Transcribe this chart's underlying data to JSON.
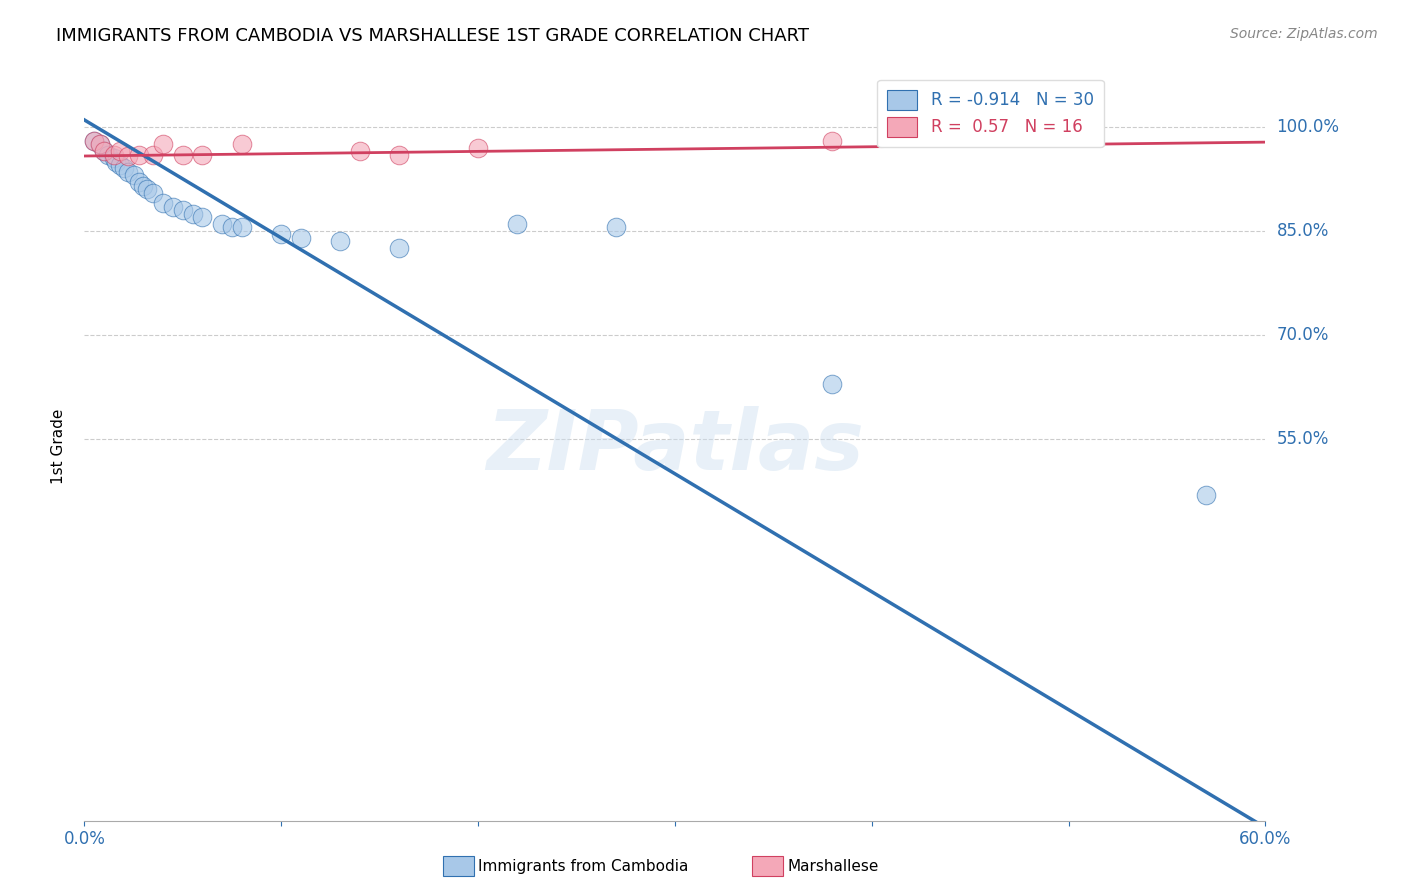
{
  "title": "IMMIGRANTS FROM CAMBODIA VS MARSHALLESE 1ST GRADE CORRELATION CHART",
  "source": "Source: ZipAtlas.com",
  "xlabel_blue": "Immigrants from Cambodia",
  "xlabel_pink": "Marshallese",
  "ylabel": "1st Grade",
  "watermark": "ZIPatlas",
  "blue_R": -0.914,
  "blue_N": 30,
  "pink_R": 0.57,
  "pink_N": 16,
  "blue_color": "#a8c8e8",
  "pink_color": "#f4a8b8",
  "blue_line_color": "#3070b0",
  "pink_line_color": "#d04060",
  "xlim": [
    0.0,
    0.6
  ],
  "ylim": [
    0.0,
    1.08
  ],
  "xtick_vals": [
    0.0,
    0.1,
    0.2,
    0.3,
    0.4,
    0.5,
    0.6
  ],
  "ytick_values": [
    0.55,
    0.7,
    0.85,
    1.0
  ],
  "ytick_labels": [
    "55.0%",
    "70.0%",
    "85.0%",
    "100.0%"
  ],
  "blue_x": [
    0.005,
    0.008,
    0.01,
    0.012,
    0.015,
    0.016,
    0.018,
    0.02,
    0.022,
    0.025,
    0.028,
    0.03,
    0.032,
    0.035,
    0.04,
    0.045,
    0.05,
    0.055,
    0.06,
    0.07,
    0.075,
    0.08,
    0.1,
    0.11,
    0.13,
    0.16,
    0.22,
    0.27,
    0.38,
    0.57
  ],
  "blue_y": [
    0.98,
    0.975,
    0.965,
    0.96,
    0.955,
    0.95,
    0.945,
    0.94,
    0.935,
    0.93,
    0.92,
    0.915,
    0.91,
    0.905,
    0.89,
    0.885,
    0.88,
    0.875,
    0.87,
    0.86,
    0.855,
    0.855,
    0.845,
    0.84,
    0.835,
    0.825,
    0.86,
    0.855,
    0.63,
    0.47
  ],
  "pink_x": [
    0.005,
    0.008,
    0.01,
    0.015,
    0.018,
    0.022,
    0.028,
    0.035,
    0.04,
    0.05,
    0.06,
    0.08,
    0.14,
    0.16,
    0.2,
    0.38
  ],
  "pink_y": [
    0.98,
    0.975,
    0.965,
    0.96,
    0.965,
    0.958,
    0.96,
    0.96,
    0.975,
    0.96,
    0.96,
    0.975,
    0.965,
    0.96,
    0.97,
    0.98
  ],
  "blue_trend_x0": 0.0,
  "blue_trend_y0": 1.01,
  "blue_trend_x1": 0.6,
  "blue_trend_y1": -0.01,
  "pink_trend_x0": 0.0,
  "pink_trend_y0": 0.958,
  "pink_trend_x1": 0.6,
  "pink_trend_y1": 0.978
}
